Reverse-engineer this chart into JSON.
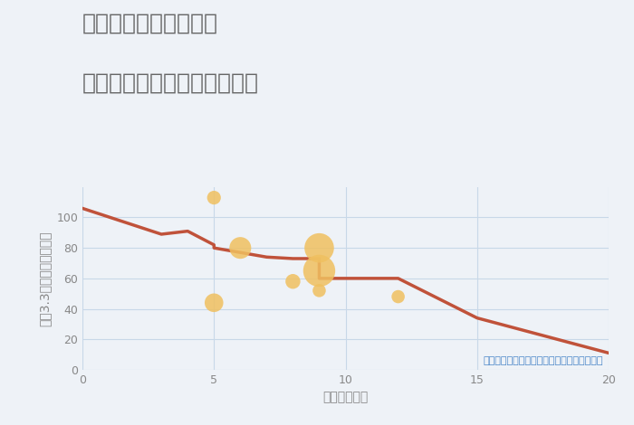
{
  "title_line1": "福岡県太宰府市国分の",
  "title_line2": "駅距離別中古マンション価格",
  "xlabel": "駅距離（分）",
  "ylabel": "坪（3.3㎡）単価（万円）",
  "background_color": "#eef2f7",
  "plot_background": "#eef2f7",
  "line_color": "#c0523a",
  "line_x": [
    0,
    3,
    4,
    5,
    5,
    7,
    8,
    9,
    9,
    10,
    10,
    12,
    15,
    20
  ],
  "line_y": [
    106,
    89,
    91,
    82,
    80,
    74,
    73,
    73,
    60,
    60,
    60,
    60,
    34,
    11
  ],
  "scatter_x": [
    5,
    6,
    8,
    9,
    9,
    9,
    12,
    5
  ],
  "scatter_y": [
    113,
    80,
    58,
    80,
    65,
    52,
    48,
    44
  ],
  "scatter_sizes": [
    120,
    300,
    140,
    550,
    650,
    110,
    110,
    220
  ],
  "scatter_color": "#f0c060",
  "scatter_alpha": 0.85,
  "note": "円の大きさは、取引のあった物件面積を示す",
  "note_color": "#4a86c8",
  "xlim": [
    0,
    20
  ],
  "ylim": [
    0,
    120
  ],
  "xticks": [
    0,
    5,
    10,
    15,
    20
  ],
  "yticks": [
    0,
    20,
    40,
    60,
    80,
    100
  ],
  "grid_color": "#c8d8e8",
  "title_color": "#666666",
  "axis_color": "#888888",
  "title_fontsize": 18,
  "label_fontsize": 10,
  "tick_fontsize": 9,
  "note_fontsize": 8
}
